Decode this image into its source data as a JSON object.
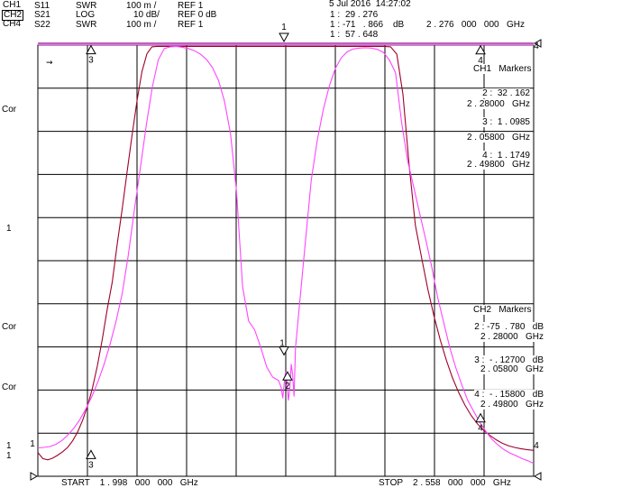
{
  "header": {
    "date": "5 Jul 2016  14:27:02",
    "channels": [
      {
        "ch": "CH1",
        "param": "S11",
        "format": "SWR",
        "scale": "100 m /",
        "ref": "REF 1",
        "active": false
      },
      {
        "ch": "CH2",
        "param": "S21",
        "format": "LOG",
        "scale": "10 dB/",
        "ref": "REF 0 dB",
        "active": true
      },
      {
        "ch": "CH4",
        "param": "S22",
        "format": "SWR",
        "scale": "100 m /",
        "ref": "REF 1",
        "active": false
      }
    ],
    "marker_readouts": [
      {
        "num": "1 :",
        "value": "29 . 276",
        "unit": ""
      },
      {
        "num": "1 :",
        "value": "-71   . 866",
        "unit": "dB"
      },
      {
        "num": "1 :",
        "value": "57 . 648",
        "unit": ""
      }
    ],
    "marker_freq": "2 . 276   000   000   GHz"
  },
  "side_labels": [
    "Cor",
    "1",
    "Cor",
    "Cor",
    "1",
    "1"
  ],
  "ch1_markers": {
    "title": "CH1   Markers",
    "items": [
      {
        "label": "2 :  32 . 162",
        "freq": "2 . 28000   GHz"
      },
      {
        "label": "3 :  1 . 0985",
        "freq": "2 . 05800   GHz"
      },
      {
        "label": "4 :  1 . 1749",
        "freq": "2 . 49800   GHz"
      }
    ]
  },
  "ch2_markers": {
    "title": "CH2   Markers",
    "items": [
      {
        "label": "2 : -75  . 780   dB",
        "freq": "2 . 28000   GHz"
      },
      {
        "label": "3 :  - . 12700   dB",
        "freq": "2 . 05800   GHz"
      },
      {
        "label": "4 :  - . 15800   dB",
        "freq": "2 . 49800   GHz"
      }
    ]
  },
  "footer": {
    "start": "START    1 . 998   000   000   GHz",
    "stop": "STOP    2 . 558   000   000   GHz"
  },
  "colors": {
    "s21": "#a0002a",
    "s11": "#ff44ff",
    "grid": "#000000",
    "ref": "#990099"
  },
  "chart_data": {
    "type": "line",
    "xlabel": "",
    "ylabel": "",
    "xlim": [
      1.998,
      2.558
    ],
    "ylim": [
      -100,
      0
    ],
    "grid": true,
    "series": [
      {
        "id": "s21",
        "x": [
          1.998,
          2.0036,
          2.0092,
          2.0148,
          2.0204,
          2.026,
          2.0316,
          2.0372,
          2.0428,
          2.0484,
          2.054,
          2.0596,
          2.0652,
          2.0708,
          2.0764,
          2.082,
          2.0876,
          2.0932,
          2.0988,
          2.1044,
          2.11,
          2.1156,
          2.1212,
          2.1268,
          2.1324,
          2.138,
          2.3894,
          2.3964,
          2.4034,
          2.4104,
          2.4174,
          2.4244,
          2.4314,
          2.4384,
          2.4454,
          2.4524,
          2.4594,
          2.4664,
          2.4734,
          2.4804,
          2.4874,
          2.4944,
          2.5014,
          2.5084,
          2.5154,
          2.5224,
          2.5294,
          2.5364,
          2.5434,
          2.5504,
          2.558
        ],
        "y": [
          -94.5,
          -95.9,
          -96.2,
          -95.8,
          -95.1,
          -94.3,
          -93.3,
          -91.8,
          -89.8,
          -87.1,
          -83.8,
          -79.6,
          -74.4,
          -68.2,
          -61.2,
          -55.0,
          -46.2,
          -38.1,
          -29.4,
          -20.9,
          -12.9,
          -6.1,
          -2.0,
          -0.4,
          -0.3,
          -0.3,
          -0.3,
          -0.4,
          -2.1,
          -11.4,
          -27.9,
          -41.8,
          -49.3,
          -56.5,
          -62.8,
          -68.3,
          -73.1,
          -77.2,
          -80.6,
          -83.5,
          -85.9,
          -87.8,
          -89.3,
          -90.5,
          -91.5,
          -92.3,
          -92.9,
          -93.3,
          -93.6,
          -93.8,
          -94.0
        ]
      },
      {
        "id": "s11",
        "x": [
          1.998,
          2.0048,
          2.0116,
          2.0184,
          2.0252,
          2.032,
          2.0388,
          2.0456,
          2.0524,
          2.0592,
          2.066,
          2.0728,
          2.0796,
          2.0864,
          2.0932,
          2.1,
          2.1068,
          2.1136,
          2.1204,
          2.1272,
          2.134,
          2.1408,
          2.1476,
          2.1544,
          2.1612,
          2.168,
          2.1748,
          2.1816,
          2.1884,
          2.1952,
          2.202,
          2.2088,
          2.2156,
          2.2224,
          2.2292,
          2.236,
          2.2428,
          2.2496,
          2.2564,
          2.2632,
          2.27,
          2.2728,
          2.2746,
          2.2762,
          2.2778,
          2.2794,
          2.281,
          2.2826,
          2.2842,
          2.2858,
          2.2874,
          2.289,
          2.3,
          2.3068,
          2.3136,
          2.3204,
          2.3272,
          2.334,
          2.3408,
          2.3476,
          2.3544,
          2.3612,
          2.368,
          2.3748,
          2.3816,
          2.3884,
          2.3952,
          2.402,
          2.4088,
          2.4156,
          2.4224,
          2.4292,
          2.436,
          2.4428,
          2.4496,
          2.4564,
          2.4632,
          2.47,
          2.4768,
          2.4836,
          2.4904,
          2.4972,
          2.504,
          2.5108,
          2.5176,
          2.5244,
          2.5312,
          2.538,
          2.5448,
          2.5516,
          2.558
        ],
        "y": [
          -93.4,
          -93.3,
          -93.1,
          -92.6,
          -91.7,
          -90.4,
          -88.8,
          -86.8,
          -84.3,
          -81.4,
          -78.0,
          -74.0,
          -69.4,
          -64.0,
          -57.7,
          -48.9,
          -38.4,
          -28.8,
          -18.7,
          -9.8,
          -3.4,
          -0.8,
          -0.4,
          -0.3,
          -0.5,
          -0.8,
          -1.3,
          -2.1,
          -3.3,
          -5.2,
          -8.2,
          -13.0,
          -20.5,
          -34.0,
          -56.0,
          -64.0,
          -66.0,
          -70.0,
          -74.6,
          -77.0,
          -77.8,
          -79.4,
          -81.9,
          -78.6,
          -75.8,
          -78.0,
          -82.4,
          -79.6,
          -74.0,
          -76.6,
          -81.5,
          -70.2,
          -46.0,
          -31.3,
          -22.0,
          -15.0,
          -9.5,
          -5.4,
          -2.9,
          -1.5,
          -0.9,
          -0.7,
          -0.6,
          -0.7,
          -1.0,
          -1.7,
          -3.5,
          -6.4,
          -17.9,
          -26.7,
          -32.8,
          -39.0,
          -45.0,
          -51.4,
          -58.5,
          -64.3,
          -70.1,
          -74.8,
          -78.8,
          -82.4,
          -85.0,
          -87.5,
          -89.6,
          -91.4,
          -92.7,
          -93.8,
          -94.6,
          -95.2,
          -95.9,
          -96.4,
          -97.0
        ]
      }
    ],
    "markers_trace": [
      {
        "label": "1",
        "x": 2.276,
        "y": -71.866
      },
      {
        "label": "2",
        "x": 2.28,
        "y": -75.78
      },
      {
        "label": "3",
        "x": 2.058,
        "y": -0.127
      },
      {
        "label": "4",
        "x": 2.498,
        "y": -0.158
      }
    ],
    "markers_bottom": [
      {
        "label": "3",
        "x": 2.058,
        "y": -94.0
      },
      {
        "label": "4",
        "x": 2.498,
        "y": -85.5
      }
    ]
  }
}
